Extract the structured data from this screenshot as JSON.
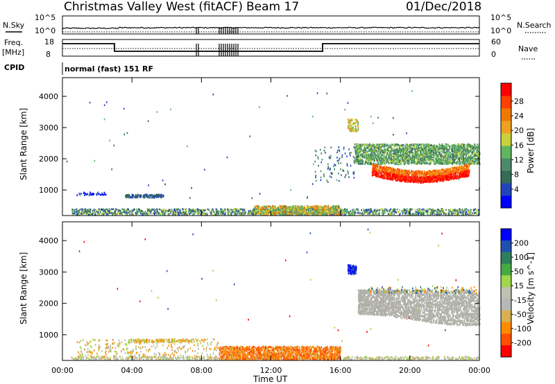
{
  "header": {
    "station": "Christmas Valley West (fitACF)",
    "beam": "Beam 17",
    "date": "01/Dec/2018"
  },
  "top_panels": {
    "nsky_label": "N.Sky",
    "nsearch_label": "N.Search",
    "freq_label_1": "Freq.",
    "freq_label_2": "[MHz]",
    "nave_label": "Nave",
    "cpid_label": "CPID",
    "cpid_text": "normal (fast) 151 RF",
    "noise_ticks": [
      "10^5",
      "10^0"
    ],
    "freq_ticks": [
      "18",
      "8"
    ],
    "nave_ticks": [
      "60",
      "0"
    ]
  },
  "colors": {
    "power": [
      "#0000ff",
      "#2244bb",
      "#336b57",
      "#4c8a6a",
      "#5fb65f",
      "#c8d23c",
      "#f0a020",
      "#f07800",
      "#ff4000",
      "#ff0000"
    ],
    "velocity": [
      "#ff0000",
      "#ff5000",
      "#ff8c00",
      "#d8b050",
      "#b7b7b7",
      "#c0c0b0",
      "#9fd64a",
      "#44aa44",
      "#2e7d5b",
      "#1f4fb0",
      "#0000ff"
    ],
    "ground_scatter": "#b0b0a8"
  },
  "chart_data": [
    {
      "type": "heatmap",
      "panel": "power",
      "ylabel": "Slant Range [km]",
      "xlabel": "Time UT",
      "x_ticks": [
        "00:00",
        "04:00",
        "08:00",
        "12:00",
        "16:00",
        "20:00",
        "00:00"
      ],
      "y_ticks": [
        "1000",
        "2000",
        "3000",
        "4000"
      ],
      "ylim": [
        180,
        4600
      ],
      "xlim_hours": [
        0,
        24
      ],
      "colorbar_label": "Power [dB]",
      "colorbar_ticks": [
        "4",
        "8",
        "12",
        "16",
        "20",
        "24",
        "28"
      ],
      "regions": [
        {
          "name": "near-range ground clutter",
          "t": [
            0,
            24
          ],
          "range_km": [
            250,
            450
          ],
          "value": "6-14 dB"
        },
        {
          "name": "morning echoes",
          "t": [
            3.6,
            5.8
          ],
          "range_km": [
            780,
            880
          ],
          "value": "8 dB"
        },
        {
          "name": "evening band upper",
          "t": [
            16.8,
            24
          ],
          "range_km": [
            1900,
            2500
          ],
          "value": "12-20 dB"
        },
        {
          "name": "evening band core",
          "t": [
            18.5,
            23.5
          ],
          "range_km": [
            1350,
            1900
          ],
          "value": "24-30 dB"
        },
        {
          "name": "isolated patch",
          "t": [
            16.4,
            17.0
          ],
          "range_km": [
            2800,
            3300
          ],
          "value": "16-22 dB"
        }
      ]
    },
    {
      "type": "heatmap",
      "panel": "velocity",
      "ylabel": "Slant Range [km]",
      "xlabel": "Time UT",
      "x_ticks": [
        "00:00",
        "04:00",
        "08:00",
        "12:00",
        "16:00",
        "20:00",
        "00:00"
      ],
      "y_ticks": [
        "1000",
        "2000",
        "3000",
        "4000"
      ],
      "ylim": [
        180,
        4600
      ],
      "xlim_hours": [
        0,
        24
      ],
      "colorbar_label": "Velocity [m s^-1]",
      "colorbar_ticks": [
        "200",
        "100",
        "50",
        "15",
        "-15",
        "-50",
        "-100",
        "-200"
      ],
      "regions": [
        {
          "name": "near-range echoes",
          "t": [
            9,
            16
          ],
          "range_km": [
            250,
            650
          ],
          "value": "-15 to -100 m/s"
        },
        {
          "name": "evening ground scatter",
          "t": [
            17,
            24
          ],
          "range_km": [
            1400,
            2500
          ],
          "value": "-15 to 15 m/s"
        },
        {
          "name": "positive velocity patch",
          "t": [
            16.4,
            16.9
          ],
          "range_km": [
            2900,
            3300
          ],
          "value": "100-200 m/s"
        }
      ]
    }
  ]
}
